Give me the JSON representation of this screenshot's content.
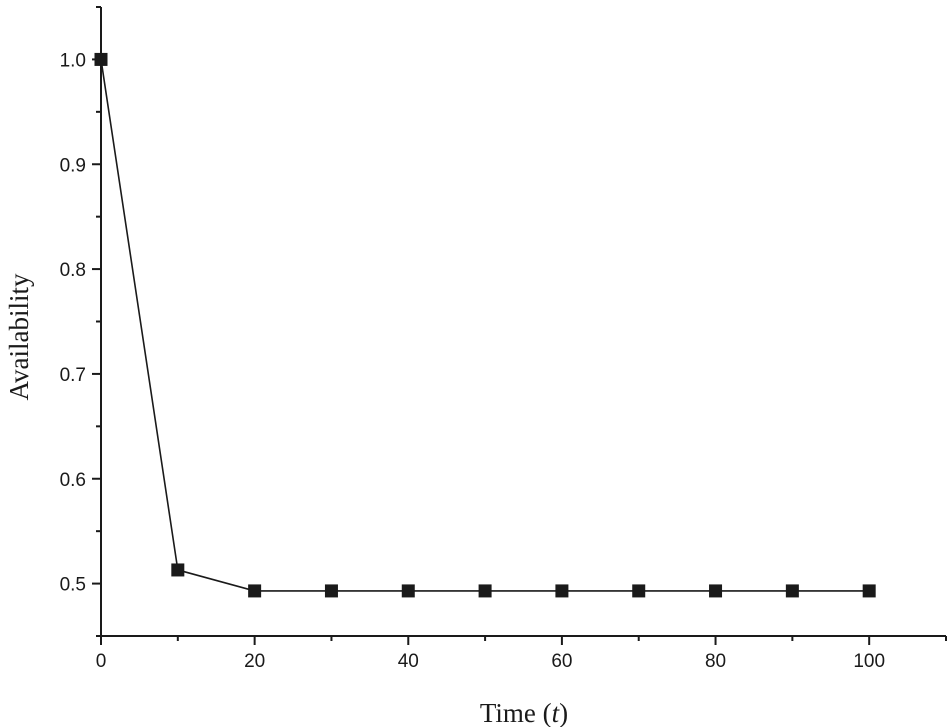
{
  "chart_data": {
    "type": "line",
    "xlabel": "Time (",
    "xlabel_var": "t",
    "xlabel_close": ")",
    "ylabel": "Availability",
    "xlim": [
      0,
      110
    ],
    "ylim": [
      0.45,
      1.05
    ],
    "x_ticks": [
      0,
      20,
      40,
      60,
      80,
      100
    ],
    "x_tick_labels": [
      "0",
      "20",
      "40",
      "60",
      "80",
      "100"
    ],
    "x_minor_ticks": [
      10,
      30,
      50,
      70,
      90,
      110
    ],
    "y_ticks": [
      0.5,
      0.6,
      0.7,
      0.8,
      0.9,
      1.0
    ],
    "y_tick_labels": [
      "0.5",
      "0.6",
      "0.7",
      "0.8",
      "0.9",
      "1.0"
    ],
    "y_minor_ticks": [
      0.45,
      0.55,
      0.65,
      0.75,
      0.85,
      0.95,
      1.05
    ],
    "grid": false,
    "marker": "square",
    "series": [
      {
        "x": [
          0,
          10,
          20,
          30,
          40,
          50,
          60,
          70,
          80,
          90,
          100
        ],
        "y": [
          1.0,
          0.513,
          0.493,
          0.493,
          0.493,
          0.493,
          0.493,
          0.493,
          0.493,
          0.493,
          0.493
        ],
        "color": "#1a1a1a"
      }
    ]
  }
}
